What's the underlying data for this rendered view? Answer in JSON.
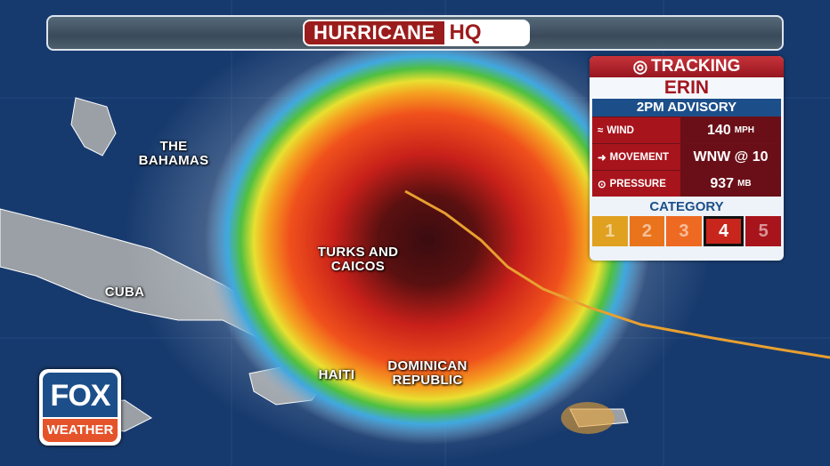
{
  "header": {
    "title_word": "HURRICANE",
    "title_logo": "HQ"
  },
  "map_labels": {
    "bahamas": "THE\nBAHAMAS",
    "turks": "TURKS AND\nCAICOS",
    "cuba": "CUBA",
    "haiti": "HAITI",
    "dominican": "DOMINICAN\nREPUBLIC"
  },
  "tracker": {
    "heading": "TRACKING",
    "storm_name": "ERIN",
    "advisory": "2PM ADVISORY",
    "rows": [
      {
        "icon": "wind-icon",
        "label": "WIND",
        "value": "140",
        "unit": "MPH"
      },
      {
        "icon": "arrow-right-icon",
        "label": "MOVEMENT",
        "value": "WNW @ 10",
        "unit": ""
      },
      {
        "icon": "pressure-icon",
        "label": "PRESSURE",
        "value": "937",
        "unit": "MB"
      }
    ],
    "category_label": "CATEGORY",
    "categories": [
      "1",
      "2",
      "3",
      "4",
      "5"
    ],
    "current_category": 4,
    "category_colors": [
      "#e0a020",
      "#e9741c",
      "#ee6a22",
      "#c8261c",
      "#a8141c"
    ]
  },
  "logo": {
    "top": "FOX",
    "bottom": "WEATHER"
  },
  "colors": {
    "ocean": "#173a6e",
    "land": "#9aa0a6",
    "track": "#e8a030",
    "brand_red": "#9b1c1c"
  }
}
